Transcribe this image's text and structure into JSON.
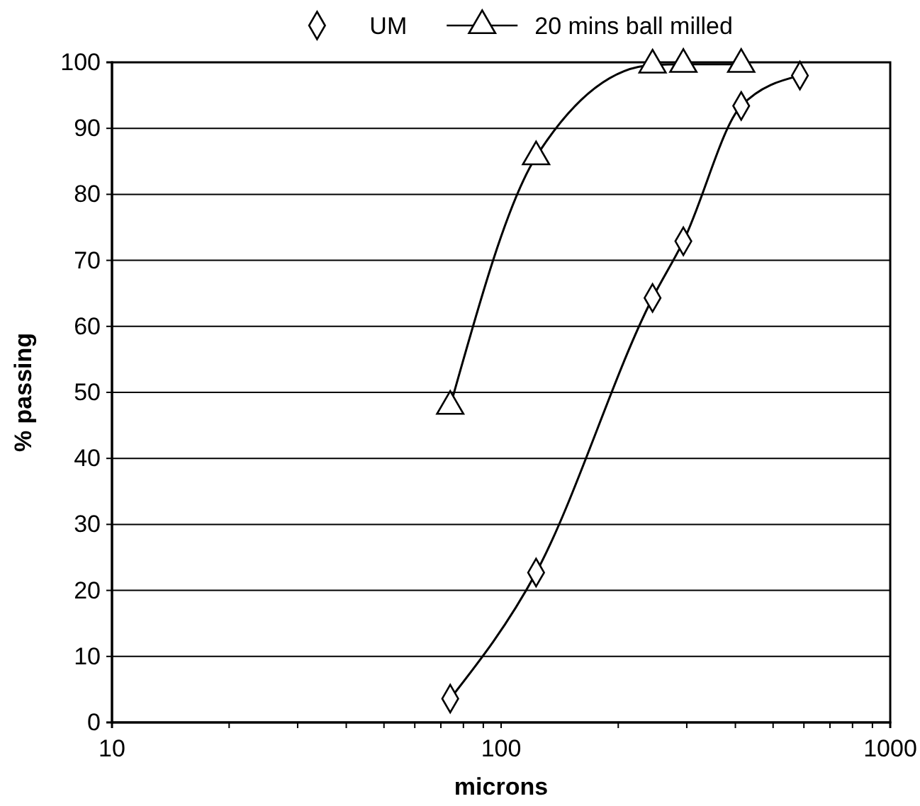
{
  "chart_data": {
    "type": "line",
    "xlabel": "microns",
    "ylabel": "% passing",
    "log": "x",
    "xlim": [
      10,
      1000
    ],
    "ylim": [
      0,
      100
    ],
    "xticks": [
      10,
      {
        "value": 20,
        "label": null
      },
      {
        "value": 30,
        "label": null
      },
      {
        "value": 40,
        "label": null
      },
      {
        "value": 50,
        "label": null
      },
      {
        "value": 60,
        "label": null
      },
      {
        "value": 70,
        "label": null
      },
      {
        "value": 80,
        "label": null
      },
      {
        "value": 90,
        "label": null
      },
      100,
      {
        "value": 200,
        "label": null
      },
      {
        "value": 300,
        "label": null
      },
      {
        "value": 400,
        "label": null
      },
      {
        "value": 500,
        "label": null
      },
      {
        "value": 600,
        "label": null
      },
      {
        "value": 700,
        "label": null
      },
      {
        "value": 800,
        "label": null
      },
      {
        "value": 900,
        "label": null
      },
      1000
    ],
    "yticks": [
      0,
      10,
      20,
      30,
      40,
      50,
      60,
      70,
      80,
      90,
      100
    ],
    "grid": "y",
    "legend": "top",
    "line_style": "solid",
    "series": [
      {
        "name": "UM",
        "color": "#000000",
        "marker": "diamond",
        "x": [
          74,
          123,
          245,
          294,
          414,
          586
        ],
        "values": [
          3.6,
          22.7,
          64.3,
          72.9,
          93.4,
          98.0
        ]
      },
      {
        "name": "20 mins ball milled",
        "color": "#000000",
        "marker": "triangle",
        "x": [
          74,
          123,
          245,
          294,
          414
        ],
        "values": [
          47.9,
          85.7,
          99.6,
          99.7,
          99.7
        ]
      }
    ]
  }
}
